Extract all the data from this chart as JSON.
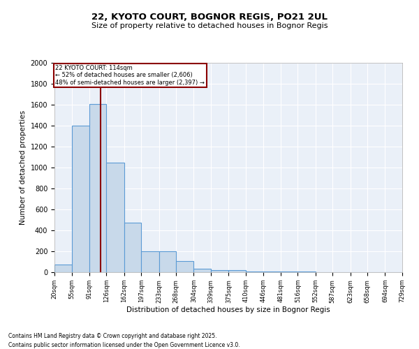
{
  "title1": "22, KYOTO COURT, BOGNOR REGIS, PO21 2UL",
  "title2": "Size of property relative to detached houses in Bognor Regis",
  "xlabel": "Distribution of detached houses by size in Bognor Regis",
  "ylabel": "Number of detached properties",
  "bar_edges": [
    20,
    55,
    91,
    126,
    162,
    197,
    233,
    268,
    304,
    339,
    375,
    410,
    446,
    481,
    516,
    552,
    587,
    623,
    658,
    694,
    729
  ],
  "bar_heights": [
    75,
    1400,
    1610,
    1050,
    475,
    200,
    200,
    110,
    35,
    20,
    20,
    5,
    5,
    5,
    5,
    3,
    2,
    2,
    1,
    1
  ],
  "bar_color": "#c8d9ea",
  "bar_edge_color": "#5b9bd5",
  "background_color": "#eaf0f8",
  "grid_color": "#ffffff",
  "property_line_x": 114,
  "property_line_color": "#8b0000",
  "annotation_text": "22 KYOTO COURT: 114sqm\n← 52% of detached houses are smaller (2,606)\n48% of semi-detached houses are larger (2,397) →",
  "annotation_box_color": "#8b0000",
  "ylim": [
    0,
    2000
  ],
  "yticks": [
    0,
    200,
    400,
    600,
    800,
    1000,
    1200,
    1400,
    1600,
    1800,
    2000
  ],
  "footnote1": "Contains HM Land Registry data © Crown copyright and database right 2025.",
  "footnote2": "Contains public sector information licensed under the Open Government Licence v3.0."
}
